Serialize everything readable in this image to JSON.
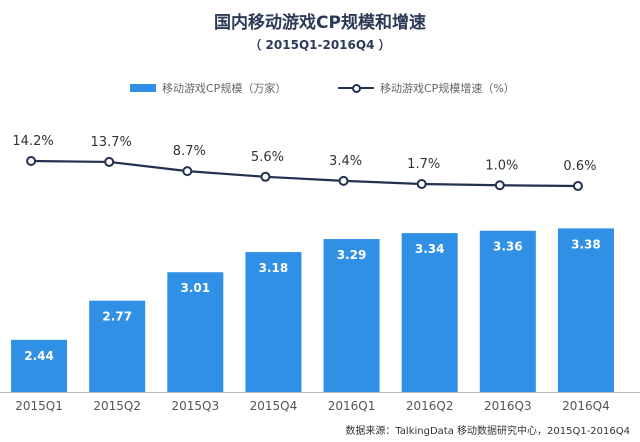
{
  "title": "国内移动游戏CP规模和增速",
  "subtitle": "（ 2015Q1-2016Q4 ）",
  "legend": {
    "bar_label": "移动游戏CP规模（万家）",
    "line_label": "移动游戏CP规模增速（%）"
  },
  "footer": "数据来源：TalkingData 移动数据研究中心，2015Q1-2016Q4",
  "colors": {
    "bar": "#2f90e6",
    "line": "#233050",
    "title": "#2c3a57",
    "text": "#333333",
    "axis": "#bbbbbb"
  },
  "chart_data": {
    "type": "bar",
    "categories": [
      "2015Q1",
      "2015Q2",
      "2015Q3",
      "2015Q4",
      "2016Q1",
      "2016Q2",
      "2016Q3",
      "2016Q4"
    ],
    "series": [
      {
        "name": "移动游戏CP规模（万家）",
        "type": "bar",
        "values": [
          2.44,
          2.77,
          3.01,
          3.18,
          3.29,
          3.34,
          3.36,
          3.38
        ],
        "labels": [
          "2.44",
          "2.77",
          "3.01",
          "3.18",
          "3.29",
          "3.34",
          "3.36",
          "3.38"
        ]
      },
      {
        "name": "移动游戏CP规模增速（%）",
        "type": "line",
        "values": [
          14.2,
          13.7,
          8.7,
          5.6,
          3.4,
          1.7,
          1.0,
          0.6
        ],
        "labels": [
          "14.2%",
          "13.7%",
          "8.7%",
          "5.6%",
          "3.4%",
          "1.7%",
          "1.0%",
          "0.6%"
        ]
      }
    ],
    "grid": false,
    "legend_position": "top"
  }
}
